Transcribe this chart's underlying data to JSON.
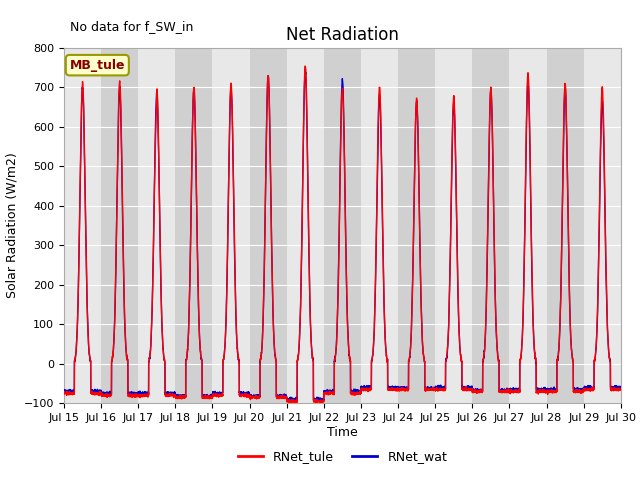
{
  "title": "Net Radiation",
  "note": "No data for f_SW_in",
  "ylabel": "Solar Radiation (W/m2)",
  "xlabel": "Time",
  "ylim": [
    -100,
    800
  ],
  "yticks": [
    -100,
    0,
    100,
    200,
    300,
    400,
    500,
    600,
    700,
    800
  ],
  "xtick_labels": [
    "Jul 15",
    "Jul 16",
    "Jul 17",
    "Jul 18",
    "Jul 19",
    "Jul 20",
    "Jul 21",
    "Jul 22",
    "Jul 23",
    "Jul 24",
    "Jul 25",
    "Jul 26",
    "Jul 27",
    "Jul 28",
    "Jul 29",
    "Jul 30"
  ],
  "legend_entries": [
    "RNet_tule",
    "RNet_wat"
  ],
  "color_tule": "#ff0000",
  "color_wat": "#0000cc",
  "bg_color": "#e8e8e8",
  "bg_color_alt": "#d0d0d0",
  "grid_color": "#ffffff",
  "fig_bg": "#ffffff",
  "linewidth": 1.0,
  "mb_tule_label": "MB_tule",
  "mb_box_color": "#ffffcc",
  "mb_box_edge": "#999900",
  "mb_text_color": "#880000",
  "peaks_tule": [
    710,
    715,
    700,
    700,
    710,
    730,
    755,
    700,
    700,
    670,
    678,
    700,
    735,
    710,
    700
  ],
  "peaks_wat": [
    700,
    700,
    685,
    695,
    700,
    730,
    745,
    720,
    680,
    665,
    660,
    695,
    715,
    700,
    665
  ],
  "nights_tule": [
    -75,
    -80,
    -80,
    -85,
    -80,
    -85,
    -95,
    -75,
    -65,
    -65,
    -65,
    -70,
    -70,
    -70,
    -65
  ],
  "nights_wat": [
    -70,
    -75,
    -75,
    -82,
    -75,
    -82,
    -90,
    -70,
    -60,
    -62,
    -60,
    -68,
    -65,
    -65,
    -60
  ]
}
